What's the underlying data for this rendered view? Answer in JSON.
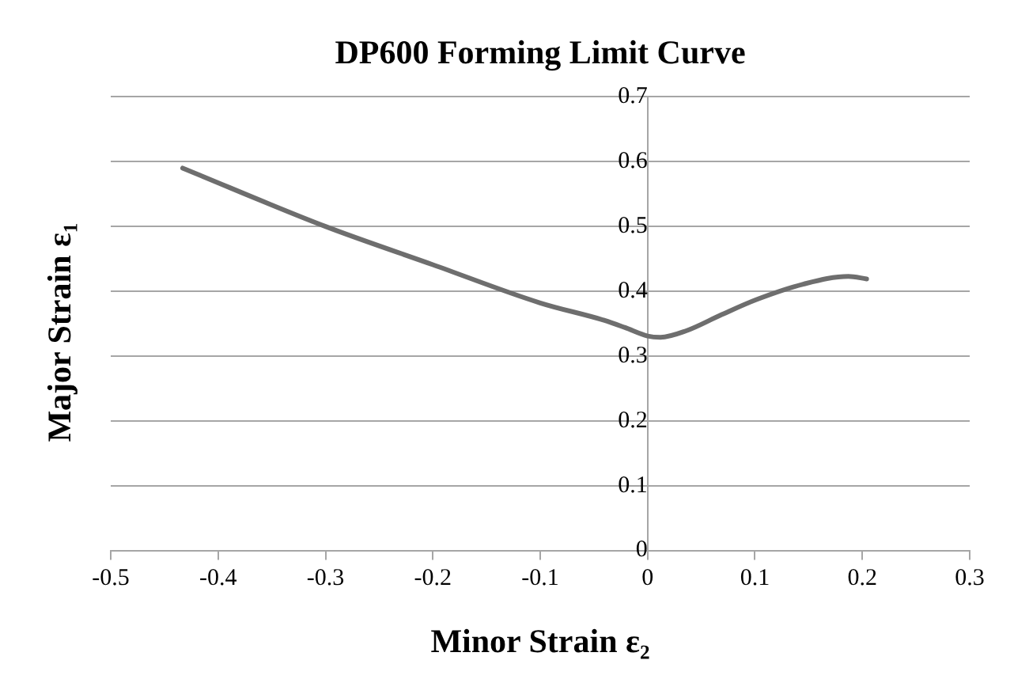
{
  "chart_data": {
    "type": "line",
    "title": "DP600 Forming Limit Curve",
    "xlabel": "Minor Strain ε₂",
    "ylabel": "Major Strain ε₁",
    "series": [
      {
        "color": "#6e6e6e",
        "x": [
          -0.433,
          -0.3,
          -0.2,
          -0.1,
          -0.04,
          -0.021,
          0,
          0.012,
          0.036,
          0.069,
          0.101,
          0.145,
          0.187,
          0.204
        ],
        "values": [
          0.59,
          0.5,
          0.441,
          0.382,
          0.355,
          0.344,
          0.331,
          0.329,
          0.339,
          0.364,
          0.387,
          0.411,
          0.423,
          0.419
        ]
      }
    ],
    "xlim": [
      -0.5,
      0.3
    ],
    "xticks": [
      -0.5,
      -0.4,
      -0.3,
      -0.2,
      -0.1,
      0,
      0.1,
      0.2,
      0.3
    ],
    "ylim": [
      0,
      0.7
    ],
    "yticks": [
      0,
      0.1,
      0.2,
      0.3,
      0.4,
      0.5,
      0.6,
      0.7
    ],
    "grid": "y",
    "legend": false,
    "marker": "none",
    "line_style": "solid"
  }
}
